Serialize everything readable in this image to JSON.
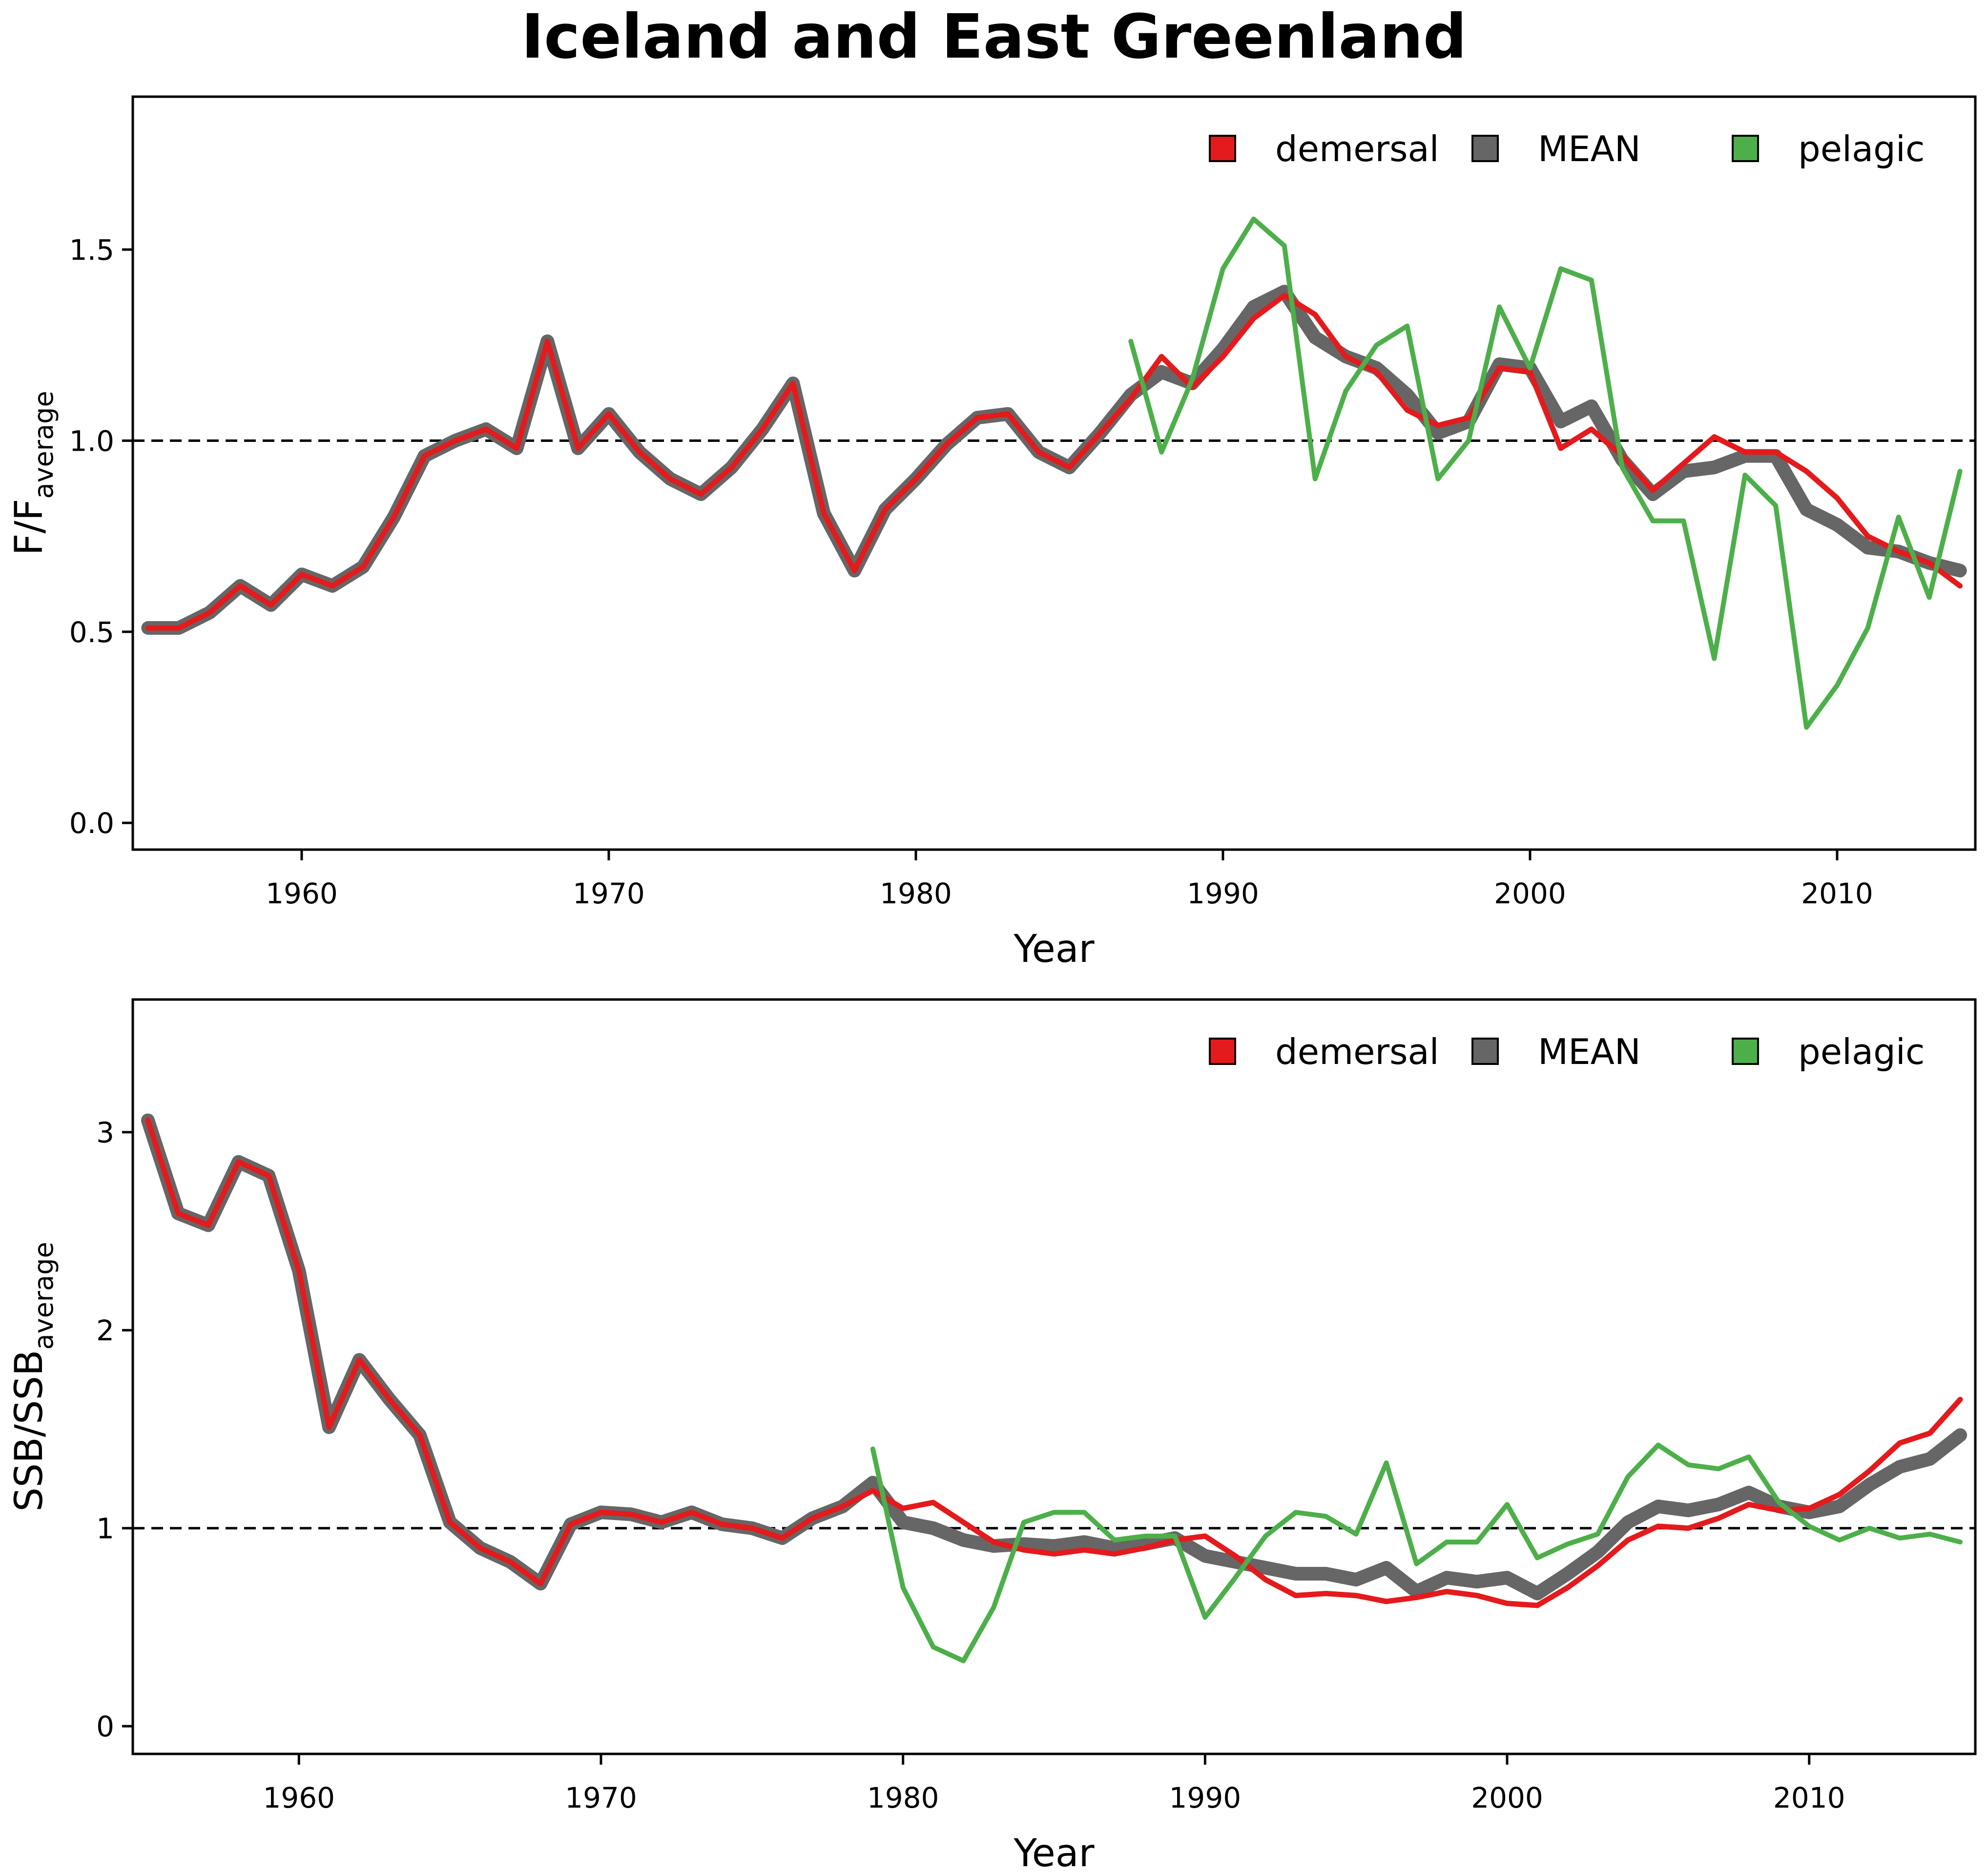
{
  "title": "Iceland and East Greenland",
  "colors": {
    "demersal": "#e41a1c",
    "MEAN": "#666666",
    "pelagic": "#4daf4a",
    "reference_line": "#000000",
    "frame": "#000000"
  },
  "chart_data": [
    {
      "type": "line",
      "xlabel": "Year",
      "ylabel": {
        "main": "F/F",
        "sub": "average"
      },
      "xlim": [
        1954.5,
        2014.5
      ],
      "ylim": [
        -0.07,
        1.9
      ],
      "xticks": [
        1960,
        1970,
        1980,
        1990,
        2000,
        2010
      ],
      "yticks": [
        0.0,
        0.5,
        1.0,
        1.5
      ],
      "ytick_labels": [
        "0.0",
        "0.5",
        "1.0",
        "1.5"
      ],
      "xtick_labels": [
        "1960",
        "1970",
        "1980",
        "1990",
        "2000",
        "2010"
      ],
      "reference_line": 1.0,
      "legend_position": "top-right",
      "legend": [
        "demersal",
        "MEAN",
        "pelagic"
      ],
      "series": [
        {
          "name": "MEAN",
          "x": [
            1955,
            1956,
            1957,
            1958,
            1959,
            1960,
            1961,
            1962,
            1963,
            1964,
            1965,
            1966,
            1967,
            1968,
            1969,
            1970,
            1971,
            1972,
            1973,
            1974,
            1975,
            1976,
            1977,
            1978,
            1979,
            1980,
            1981,
            1982,
            1983,
            1984,
            1985,
            1986,
            1987,
            1988,
            1989,
            1990,
            1991,
            1992,
            1993,
            1994,
            1995,
            1996,
            1997,
            1998,
            1999,
            2000,
            2001,
            2002,
            2003,
            2004,
            2005,
            2006,
            2007,
            2008,
            2009,
            2010,
            2011,
            2012,
            2013,
            2014
          ],
          "values": [
            0.51,
            0.51,
            0.55,
            0.62,
            0.57,
            0.65,
            0.62,
            0.67,
            0.8,
            0.96,
            1.0,
            1.03,
            0.98,
            1.26,
            0.98,
            1.07,
            0.97,
            0.9,
            0.86,
            0.93,
            1.03,
            1.15,
            0.81,
            0.66,
            0.82,
            0.9,
            0.99,
            1.06,
            1.07,
            0.97,
            0.93,
            1.02,
            1.12,
            1.18,
            1.15,
            1.24,
            1.35,
            1.39,
            1.27,
            1.22,
            1.19,
            1.12,
            1.02,
            1.05,
            1.2,
            1.19,
            1.05,
            1.09,
            0.95,
            0.86,
            0.92,
            0.93,
            0.96,
            0.96,
            0.82,
            0.78,
            0.72,
            0.71,
            0.68,
            0.66
          ]
        },
        {
          "name": "demersal",
          "x": [
            1955,
            1956,
            1957,
            1958,
            1959,
            1960,
            1961,
            1962,
            1963,
            1964,
            1965,
            1966,
            1967,
            1968,
            1969,
            1970,
            1971,
            1972,
            1973,
            1974,
            1975,
            1976,
            1977,
            1978,
            1979,
            1980,
            1981,
            1982,
            1983,
            1984,
            1985,
            1986,
            1987,
            1988,
            1989,
            1990,
            1991,
            1992,
            1993,
            1994,
            1995,
            1996,
            1997,
            1998,
            1999,
            2000,
            2001,
            2002,
            2003,
            2004,
            2005,
            2006,
            2007,
            2008,
            2009,
            2010,
            2011,
            2012,
            2013,
            2014
          ],
          "values": [
            0.51,
            0.51,
            0.55,
            0.62,
            0.57,
            0.65,
            0.62,
            0.67,
            0.8,
            0.96,
            1.0,
            1.03,
            0.98,
            1.26,
            0.98,
            1.07,
            0.97,
            0.9,
            0.86,
            0.93,
            1.03,
            1.15,
            0.81,
            0.66,
            0.82,
            0.9,
            0.99,
            1.06,
            1.07,
            0.97,
            0.93,
            1.02,
            1.11,
            1.22,
            1.14,
            1.22,
            1.32,
            1.38,
            1.33,
            1.22,
            1.18,
            1.08,
            1.04,
            1.06,
            1.19,
            1.18,
            0.98,
            1.03,
            0.96,
            0.87,
            0.94,
            1.01,
            0.97,
            0.97,
            0.92,
            0.85,
            0.75,
            0.71,
            0.68,
            0.62
          ]
        },
        {
          "name": "pelagic",
          "x": [
            1987,
            1988,
            1989,
            1990,
            1991,
            1992,
            1993,
            1994,
            1995,
            1996,
            1997,
            1998,
            1999,
            2000,
            2001,
            2002,
            2003,
            2004,
            2005,
            2006,
            2007,
            2008,
            2009,
            2010,
            2011,
            2012,
            2013,
            2014
          ],
          "values": [
            1.26,
            0.97,
            1.16,
            1.45,
            1.58,
            1.51,
            0.9,
            1.13,
            1.25,
            1.3,
            0.9,
            1.0,
            1.35,
            1.19,
            1.45,
            1.42,
            0.93,
            0.79,
            0.79,
            0.43,
            0.91,
            0.83,
            0.25,
            0.36,
            0.51,
            0.8,
            0.59,
            0.92
          ]
        }
      ]
    },
    {
      "type": "line",
      "xlabel": "Year",
      "ylabel": {
        "main": "SSB/SSB",
        "sub": "average"
      },
      "xlim": [
        1954.5,
        2015.5
      ],
      "ylim": [
        -0.14,
        3.67
      ],
      "xticks": [
        1960,
        1970,
        1980,
        1990,
        2000,
        2010
      ],
      "yticks": [
        0,
        1,
        2,
        3
      ],
      "ytick_labels": [
        "0",
        "1",
        "2",
        "3"
      ],
      "xtick_labels": [
        "1960",
        "1970",
        "1980",
        "1990",
        "2000",
        "2010"
      ],
      "reference_line": 1.0,
      "legend_position": "top-right",
      "legend": [
        "demersal",
        "MEAN",
        "pelagic"
      ],
      "series": [
        {
          "name": "MEAN",
          "x": [
            1955,
            1956,
            1957,
            1958,
            1959,
            1960,
            1961,
            1962,
            1963,
            1964,
            1965,
            1966,
            1967,
            1968,
            1969,
            1970,
            1971,
            1972,
            1973,
            1974,
            1975,
            1976,
            1977,
            1978,
            1979,
            1980,
            1981,
            1982,
            1983,
            1984,
            1985,
            1986,
            1987,
            1988,
            1989,
            1990,
            1991,
            1992,
            1993,
            1994,
            1995,
            1996,
            1997,
            1998,
            1999,
            2000,
            2001,
            2002,
            2003,
            2004,
            2005,
            2006,
            2007,
            2008,
            2009,
            2010,
            2011,
            2012,
            2013,
            2014,
            2015
          ],
          "values": [
            3.06,
            2.59,
            2.53,
            2.85,
            2.78,
            2.3,
            1.51,
            1.85,
            1.65,
            1.47,
            1.03,
            0.9,
            0.83,
            0.72,
            1.02,
            1.08,
            1.07,
            1.03,
            1.08,
            1.02,
            1.0,
            0.95,
            1.05,
            1.11,
            1.23,
            1.03,
            1.0,
            0.94,
            0.91,
            0.92,
            0.91,
            0.93,
            0.9,
            0.92,
            0.95,
            0.86,
            0.83,
            0.8,
            0.77,
            0.77,
            0.74,
            0.8,
            0.68,
            0.75,
            0.73,
            0.75,
            0.67,
            0.77,
            0.88,
            1.03,
            1.11,
            1.09,
            1.12,
            1.18,
            1.11,
            1.08,
            1.11,
            1.22,
            1.31,
            1.35,
            1.47
          ]
        },
        {
          "name": "demersal",
          "x": [
            1955,
            1956,
            1957,
            1958,
            1959,
            1960,
            1961,
            1962,
            1963,
            1964,
            1965,
            1966,
            1967,
            1968,
            1969,
            1970,
            1971,
            1972,
            1973,
            1974,
            1975,
            1976,
            1977,
            1978,
            1979,
            1980,
            1981,
            1982,
            1983,
            1984,
            1985,
            1986,
            1987,
            1988,
            1989,
            1990,
            1991,
            1992,
            1993,
            1994,
            1995,
            1996,
            1997,
            1998,
            1999,
            2000,
            2001,
            2002,
            2003,
            2004,
            2005,
            2006,
            2007,
            2008,
            2009,
            2010,
            2011,
            2012,
            2013,
            2014,
            2015
          ],
          "values": [
            3.06,
            2.59,
            2.53,
            2.85,
            2.78,
            2.3,
            1.51,
            1.85,
            1.65,
            1.47,
            1.03,
            0.9,
            0.83,
            0.72,
            1.02,
            1.08,
            1.07,
            1.03,
            1.08,
            1.02,
            1.0,
            0.95,
            1.05,
            1.11,
            1.19,
            1.1,
            1.13,
            1.03,
            0.93,
            0.89,
            0.87,
            0.89,
            0.87,
            0.9,
            0.94,
            0.96,
            0.86,
            0.74,
            0.66,
            0.67,
            0.66,
            0.63,
            0.65,
            0.68,
            0.66,
            0.62,
            0.61,
            0.7,
            0.81,
            0.94,
            1.01,
            1.0,
            1.05,
            1.12,
            1.09,
            1.1,
            1.17,
            1.29,
            1.43,
            1.48,
            1.65
          ]
        },
        {
          "name": "pelagic",
          "x": [
            1979,
            1980,
            1981,
            1982,
            1983,
            1984,
            1985,
            1986,
            1987,
            1988,
            1989,
            1990,
            1991,
            1992,
            1993,
            1994,
            1995,
            1996,
            1997,
            1998,
            1999,
            2000,
            2001,
            2002,
            2003,
            2004,
            2005,
            2006,
            2007,
            2008,
            2009,
            2010,
            2011,
            2012,
            2013,
            2014,
            2015
          ],
          "values": [
            1.4,
            0.7,
            0.4,
            0.33,
            0.6,
            1.03,
            1.08,
            1.08,
            0.94,
            0.96,
            0.96,
            0.55,
            0.75,
            0.96,
            1.08,
            1.06,
            0.97,
            1.33,
            0.82,
            0.93,
            0.93,
            1.12,
            0.85,
            0.92,
            0.97,
            1.26,
            1.42,
            1.32,
            1.3,
            1.36,
            1.13,
            1.01,
            0.94,
            1.0,
            0.95,
            0.97,
            0.93
          ]
        }
      ]
    }
  ]
}
